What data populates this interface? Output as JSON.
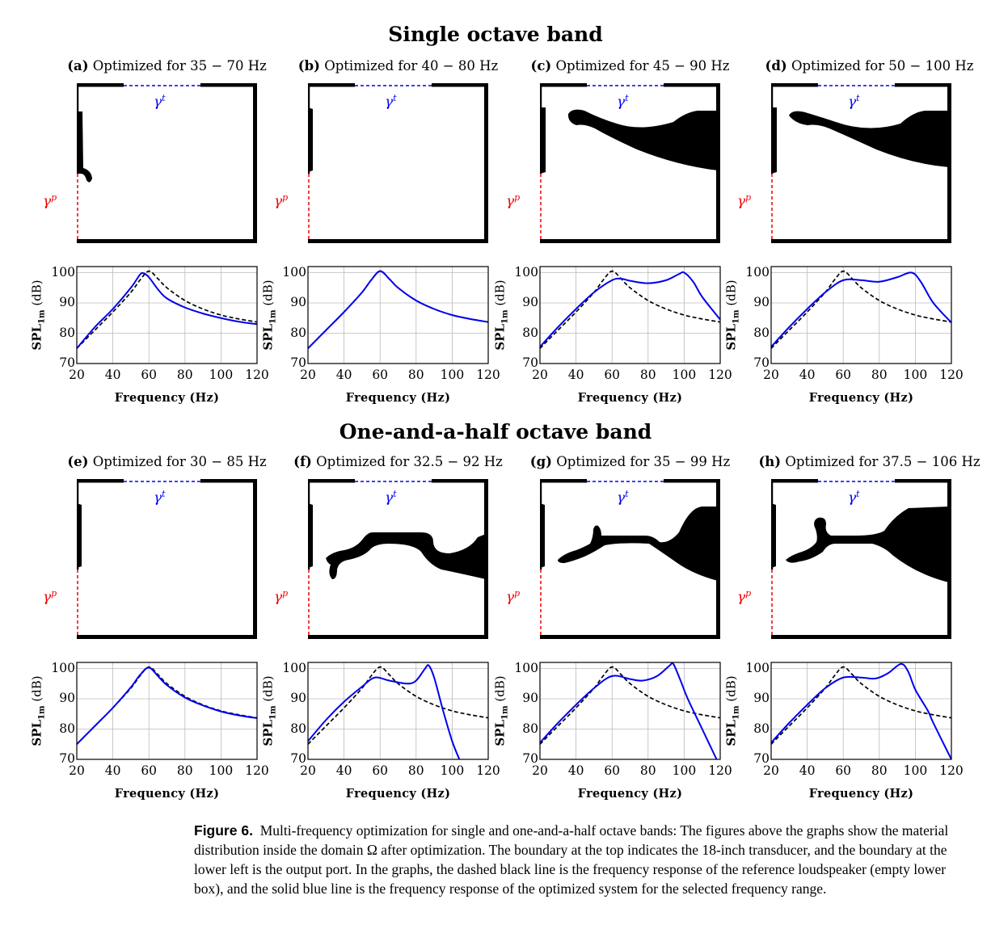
{
  "rows": [
    {
      "title": "Single octave band",
      "panels": [
        {
          "tag": "(a)",
          "label": "Optimized for 35 − 70 Hz"
        },
        {
          "tag": "(b)",
          "label": "Optimized for 40 − 80 Hz"
        },
        {
          "tag": "(c)",
          "label": "Optimized for 45 − 90 Hz"
        },
        {
          "tag": "(d)",
          "label": "Optimized for 50 − 100 Hz"
        }
      ]
    },
    {
      "title": "One-and-a-half octave band",
      "panels": [
        {
          "tag": "(e)",
          "label": "Optimized for 30 − 85 Hz"
        },
        {
          "tag": "(f)",
          "label": "Optimized for 32.5 − 92 Hz"
        },
        {
          "tag": "(g)",
          "label": "Optimized for 35 − 99 Hz"
        },
        {
          "tag": "(h)",
          "label": "Optimized for 37.5 − 106 Hz"
        }
      ]
    }
  ],
  "boundary_labels": {
    "top": "γ",
    "top_sup": "t",
    "port": "γ",
    "port_sup": "p"
  },
  "colors": {
    "optimized": "#0000ee",
    "reference": "#000000",
    "transducer_boundary": "#0000ee",
    "port_boundary": "#ee0000",
    "material": "#000000"
  },
  "caption": {
    "label": "Figure 6.",
    "text": "Multi-frequency optimization for single and one-and-a-half octave bands: The figures above the graphs show the material distribution inside the domain Ω after optimization. The boundary at the top indicates the 18-inch transducer, and the boundary at the lower left is the output port. In the graphs, the dashed black line is the frequency response of the reference loudspeaker (empty lower box), and the solid blue line is the frequency response of the optimized system for the selected frequency range."
  },
  "chart_data": [
    {
      "panel": "(a)",
      "type": "line",
      "xlabel": "Frequency (Hz)",
      "ylabel": "SPL",
      "ylabel_sub": "1m",
      "ylabel_unit": "(dB)",
      "xlim": [
        20,
        120
      ],
      "ylim": [
        70,
        102
      ],
      "xticks": [
        20,
        40,
        60,
        80,
        100,
        120
      ],
      "yticks": [
        70,
        80,
        90,
        100
      ],
      "grid": true,
      "series": [
        {
          "style": "dashed",
          "color": "#000000",
          "x": [
            20,
            30,
            40,
            50,
            55,
            60,
            65,
            70,
            80,
            90,
            100,
            110,
            120
          ],
          "y": [
            75,
            81,
            87,
            93.5,
            97.5,
            100.5,
            98,
            95,
            90.8,
            88,
            86,
            84.7,
            83.7
          ]
        },
        {
          "style": "solid",
          "color": "#0000ee",
          "x": [
            20,
            30,
            40,
            50,
            55,
            57,
            60,
            65,
            70,
            80,
            90,
            100,
            110,
            120
          ],
          "y": [
            75,
            82,
            88,
            95,
            99.3,
            99.8,
            98.5,
            94.5,
            91.5,
            88.5,
            86.5,
            85,
            83.8,
            83
          ]
        }
      ]
    },
    {
      "panel": "(b)",
      "type": "line",
      "xlabel": "Frequency (Hz)",
      "ylabel": "SPL",
      "ylabel_sub": "1m",
      "ylabel_unit": "(dB)",
      "xlim": [
        20,
        120
      ],
      "ylim": [
        70,
        102
      ],
      "xticks": [
        20,
        40,
        60,
        80,
        100,
        120
      ],
      "yticks": [
        70,
        80,
        90,
        100
      ],
      "grid": true,
      "series": [
        {
          "style": "dashed",
          "color": "#000000",
          "x": [
            20,
            30,
            40,
            50,
            55,
            60,
            65,
            70,
            80,
            90,
            100,
            110,
            120
          ],
          "y": [
            75,
            81,
            87,
            93.5,
            97.5,
            100.5,
            98,
            95,
            90.8,
            88,
            86,
            84.7,
            83.7
          ]
        },
        {
          "style": "solid",
          "color": "#0000ee",
          "x": [
            20,
            30,
            40,
            50,
            55,
            60,
            65,
            70,
            80,
            90,
            100,
            110,
            120
          ],
          "y": [
            75,
            81,
            87,
            93.5,
            97.5,
            100.5,
            98,
            95,
            90.8,
            88,
            86,
            84.7,
            83.7
          ]
        }
      ]
    },
    {
      "panel": "(c)",
      "type": "line",
      "xlabel": "Frequency (Hz)",
      "ylabel": "SPL",
      "ylabel_sub": "1m",
      "ylabel_unit": "(dB)",
      "xlim": [
        20,
        120
      ],
      "ylim": [
        70,
        102
      ],
      "xticks": [
        20,
        40,
        60,
        80,
        100,
        120
      ],
      "yticks": [
        70,
        80,
        90,
        100
      ],
      "grid": true,
      "series": [
        {
          "style": "dashed",
          "color": "#000000",
          "x": [
            20,
            30,
            40,
            50,
            55,
            60,
            65,
            70,
            80,
            90,
            100,
            110,
            120
          ],
          "y": [
            75,
            81,
            87,
            93.5,
            97.5,
            100.5,
            98,
            95,
            90.8,
            88,
            86,
            84.7,
            83.7
          ]
        },
        {
          "style": "solid",
          "color": "#0000ee",
          "x": [
            20,
            30,
            40,
            50,
            60,
            65,
            70,
            80,
            90,
            97,
            100,
            105,
            110,
            120
          ],
          "y": [
            75.5,
            82,
            88,
            93.5,
            97.5,
            98,
            97.3,
            96.5,
            97.5,
            99.5,
            100,
            97,
            92,
            84.5
          ]
        }
      ]
    },
    {
      "panel": "(d)",
      "type": "line",
      "xlabel": "Frequency (Hz)",
      "ylabel": "SPL",
      "ylabel_sub": "1m",
      "ylabel_unit": "(dB)",
      "xlim": [
        20,
        120
      ],
      "ylim": [
        70,
        102
      ],
      "xticks": [
        20,
        40,
        60,
        80,
        100,
        120
      ],
      "yticks": [
        70,
        80,
        90,
        100
      ],
      "grid": true,
      "series": [
        {
          "style": "dashed",
          "color": "#000000",
          "x": [
            20,
            30,
            40,
            50,
            55,
            60,
            65,
            70,
            80,
            90,
            100,
            110,
            120
          ],
          "y": [
            75,
            81,
            87,
            93.5,
            97.5,
            100.5,
            98,
            95,
            90.8,
            88,
            86,
            84.7,
            83.7
          ]
        },
        {
          "style": "solid",
          "color": "#0000ee",
          "x": [
            20,
            30,
            40,
            50,
            60,
            70,
            80,
            90,
            98,
            103,
            110,
            120
          ],
          "y": [
            75.5,
            82,
            88,
            93.5,
            97.5,
            97.5,
            97,
            98.5,
            100,
            97,
            90,
            83.5
          ]
        }
      ]
    },
    {
      "panel": "(e)",
      "type": "line",
      "xlabel": "Frequency (Hz)",
      "ylabel": "SPL",
      "ylabel_sub": "1m",
      "ylabel_unit": "(dB)",
      "xlim": [
        20,
        120
      ],
      "ylim": [
        70,
        102
      ],
      "xticks": [
        20,
        40,
        60,
        80,
        100,
        120
      ],
      "yticks": [
        70,
        80,
        90,
        100
      ],
      "grid": true,
      "series": [
        {
          "style": "dashed",
          "color": "#000000",
          "x": [
            20,
            30,
            40,
            50,
            55,
            60,
            65,
            70,
            80,
            90,
            100,
            110,
            120
          ],
          "y": [
            75,
            81,
            87,
            93.5,
            97.5,
            100.5,
            98,
            95,
            90.8,
            88,
            86,
            84.7,
            83.7
          ]
        },
        {
          "style": "solid",
          "color": "#0000ee",
          "x": [
            20,
            30,
            40,
            50,
            55,
            60,
            65,
            70,
            80,
            90,
            100,
            110,
            120
          ],
          "y": [
            75,
            81,
            87,
            93.8,
            97.8,
            100.3,
            97.5,
            94.5,
            90.4,
            87.8,
            85.8,
            84.5,
            83.6
          ]
        }
      ]
    },
    {
      "panel": "(f)",
      "type": "line",
      "xlabel": "Frequency (Hz)",
      "ylabel": "SPL",
      "ylabel_sub": "1m",
      "ylabel_unit": "(dB)",
      "xlim": [
        20,
        120
      ],
      "ylim": [
        70,
        102
      ],
      "xticks": [
        20,
        40,
        60,
        80,
        100,
        120
      ],
      "yticks": [
        70,
        80,
        90,
        100
      ],
      "grid": true,
      "series": [
        {
          "style": "dashed",
          "color": "#000000",
          "x": [
            20,
            30,
            40,
            50,
            55,
            60,
            65,
            70,
            80,
            90,
            100,
            110,
            120
          ],
          "y": [
            75,
            81,
            87,
            93.5,
            97.5,
            100.5,
            98,
            95,
            90.8,
            88,
            86,
            84.7,
            83.7
          ]
        },
        {
          "style": "solid",
          "color": "#0000ee",
          "x": [
            20,
            30,
            40,
            50,
            57,
            65,
            75,
            80,
            85,
            87,
            90,
            95,
            100,
            104
          ],
          "y": [
            76,
            83,
            89,
            94,
            97,
            96,
            95,
            96,
            100,
            101,
            97,
            86,
            76,
            70
          ]
        }
      ]
    },
    {
      "panel": "(g)",
      "type": "line",
      "xlabel": "Frequency (Hz)",
      "ylabel": "SPL",
      "ylabel_sub": "1m",
      "ylabel_unit": "(dB)",
      "xlim": [
        20,
        120
      ],
      "ylim": [
        70,
        102
      ],
      "xticks": [
        20,
        40,
        60,
        80,
        100,
        120
      ],
      "yticks": [
        70,
        80,
        90,
        100
      ],
      "grid": true,
      "series": [
        {
          "style": "dashed",
          "color": "#000000",
          "x": [
            20,
            30,
            40,
            50,
            55,
            60,
            65,
            70,
            80,
            90,
            100,
            110,
            120
          ],
          "y": [
            75,
            81,
            87,
            93.5,
            97.5,
            100.5,
            98,
            95,
            90.8,
            88,
            86,
            84.7,
            83.7
          ]
        },
        {
          "style": "solid",
          "color": "#0000ee",
          "x": [
            20,
            30,
            40,
            50,
            60,
            70,
            77,
            85,
            92,
            94,
            98,
            102,
            110,
            118
          ],
          "y": [
            75.5,
            82,
            88,
            93.5,
            97.5,
            96.5,
            96,
            97.5,
            101,
            101.5,
            96,
            90,
            80,
            70
          ]
        }
      ]
    },
    {
      "panel": "(h)",
      "type": "line",
      "xlabel": "Frequency (Hz)",
      "ylabel": "SPL",
      "ylabel_sub": "1m",
      "ylabel_unit": "(dB)",
      "xlim": [
        20,
        120
      ],
      "ylim": [
        70,
        102
      ],
      "xticks": [
        20,
        40,
        60,
        80,
        100,
        120
      ],
      "yticks": [
        70,
        80,
        90,
        100
      ],
      "grid": true,
      "series": [
        {
          "style": "dashed",
          "color": "#000000",
          "x": [
            20,
            30,
            40,
            50,
            55,
            60,
            65,
            70,
            80,
            90,
            100,
            110,
            120
          ],
          "y": [
            75,
            81,
            87,
            93.5,
            97.5,
            100.5,
            98,
            95,
            90.8,
            88,
            86,
            84.7,
            83.7
          ]
        },
        {
          "style": "solid",
          "color": "#0000ee",
          "x": [
            20,
            30,
            40,
            50,
            60,
            70,
            78,
            85,
            92,
            96,
            100,
            107,
            110,
            120
          ],
          "y": [
            75.5,
            82,
            88,
            93.5,
            97,
            97,
            96.7,
            98.5,
            101.5,
            99,
            93,
            86,
            82,
            70
          ]
        }
      ]
    }
  ]
}
